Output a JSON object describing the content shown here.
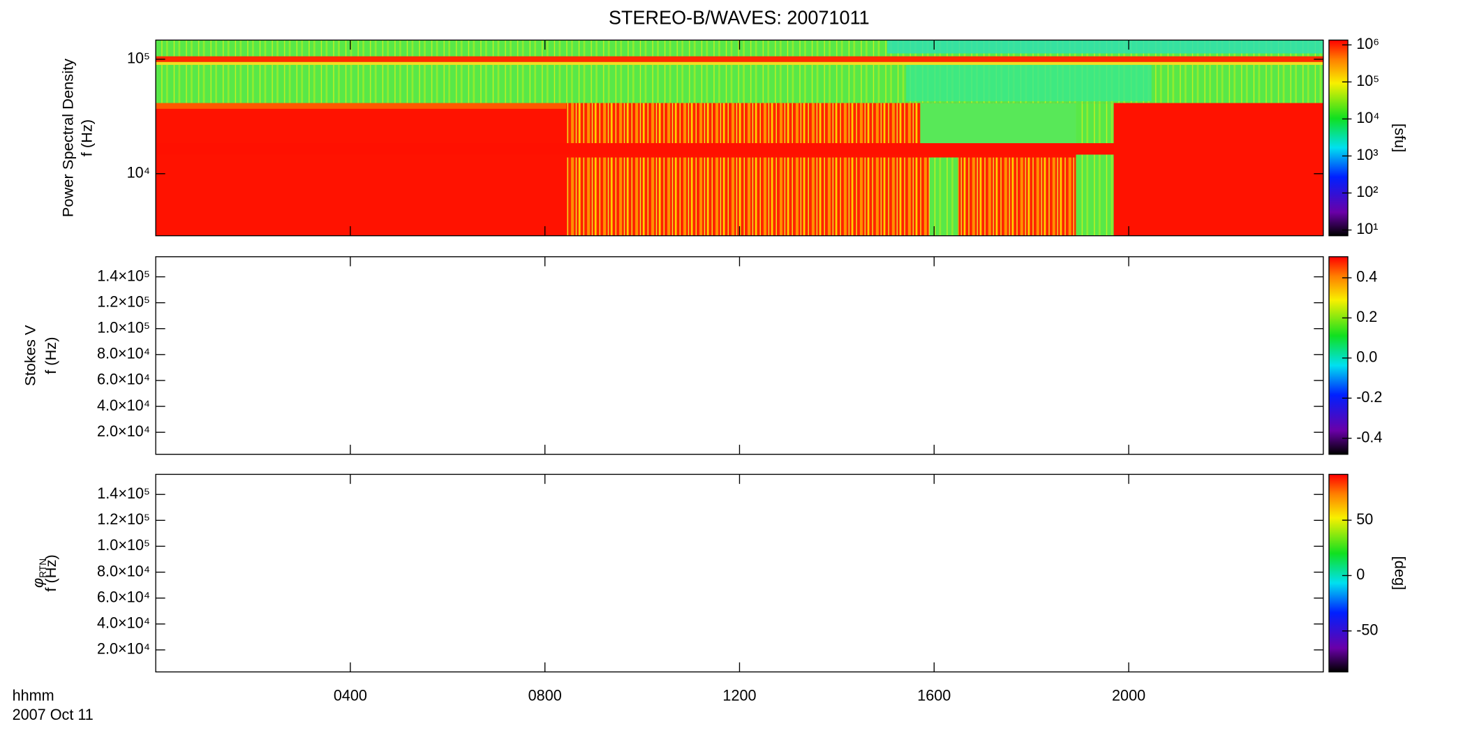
{
  "chart_data": [
    {
      "type": "spectrogram",
      "title": "STEREO-B/WAVES: 20071011",
      "ylabel": [
        "Power Spectral Density",
        "f (Hz)"
      ],
      "yscale": "log",
      "ylim": [
        2870,
        147000
      ],
      "yticks": [
        {
          "value": 10000,
          "label": "10⁴"
        },
        {
          "value": 100000,
          "label": "10⁵"
        }
      ],
      "xlim": [
        0,
        24
      ],
      "xticks": [
        4,
        8,
        12,
        16,
        20
      ],
      "colorbar": {
        "label": "[sfu]",
        "scale": "log",
        "lim": [
          7,
          1350000
        ],
        "ticks": [
          {
            "value": 10,
            "label": "10¹"
          },
          {
            "value": 100,
            "label": "10²"
          },
          {
            "value": 1000,
            "label": "10³"
          },
          {
            "value": 10000,
            "label": "10⁴"
          },
          {
            "value": 100000,
            "label": "10⁵"
          },
          {
            "value": 1000000,
            "label": "10⁶"
          }
        ]
      }
    },
    {
      "type": "spectrogram",
      "ylabel": [
        "Stokes V",
        "f (Hz)"
      ],
      "yscale": "linear",
      "ylim": [
        3000,
        155500
      ],
      "yticks": [
        {
          "value": 20000,
          "label": "2.0×10⁴"
        },
        {
          "value": 40000,
          "label": "4.0×10⁴"
        },
        {
          "value": 60000,
          "label": "6.0×10⁴"
        },
        {
          "value": 80000,
          "label": "8.0×10⁴"
        },
        {
          "value": 100000,
          "label": "1.0×10⁵"
        },
        {
          "value": 120000,
          "label": "1.2×10⁵"
        },
        {
          "value": 140000,
          "label": "1.4×10⁵"
        }
      ],
      "xlim": [
        0,
        24
      ],
      "xticks": [
        4,
        8,
        12,
        16,
        20
      ],
      "colorbar": {
        "scale": "linear",
        "lim": [
          -0.48,
          0.505
        ],
        "ticks": [
          -0.4,
          -0.2,
          {
            "value": 0,
            "label": "0.0"
          },
          0.2,
          0.4
        ]
      }
    },
    {
      "type": "spectrogram",
      "ylabel_symbol": "φ",
      "ylabel_subscript": "RTN",
      "ylabel": [
        "f (Hz)"
      ],
      "yscale": "linear",
      "ylim": [
        3000,
        155500
      ],
      "yticks": [
        {
          "value": 20000,
          "label": "2.0×10⁴"
        },
        {
          "value": 40000,
          "label": "4.0×10⁴"
        },
        {
          "value": 60000,
          "label": "6.0×10⁴"
        },
        {
          "value": 80000,
          "label": "8.0×10⁴"
        },
        {
          "value": 100000,
          "label": "1.0×10⁵"
        },
        {
          "value": 120000,
          "label": "1.2×10⁵"
        },
        {
          "value": 140000,
          "label": "1.4×10⁵"
        }
      ],
      "xlim": [
        0,
        24
      ],
      "xticks": [
        {
          "value": 4,
          "label": "0400"
        },
        {
          "value": 8,
          "label": "0800"
        },
        {
          "value": 12,
          "label": "1200"
        },
        {
          "value": 16,
          "label": "1600"
        },
        {
          "value": 20,
          "label": "2000"
        }
      ],
      "xlabel": "hhmm",
      "date_label": "2007 Oct 11",
      "colorbar": {
        "label": "[deg]",
        "scale": "linear",
        "lim": [
          -87,
          91.4
        ],
        "ticks": [
          -50,
          0,
          50
        ]
      }
    }
  ]
}
